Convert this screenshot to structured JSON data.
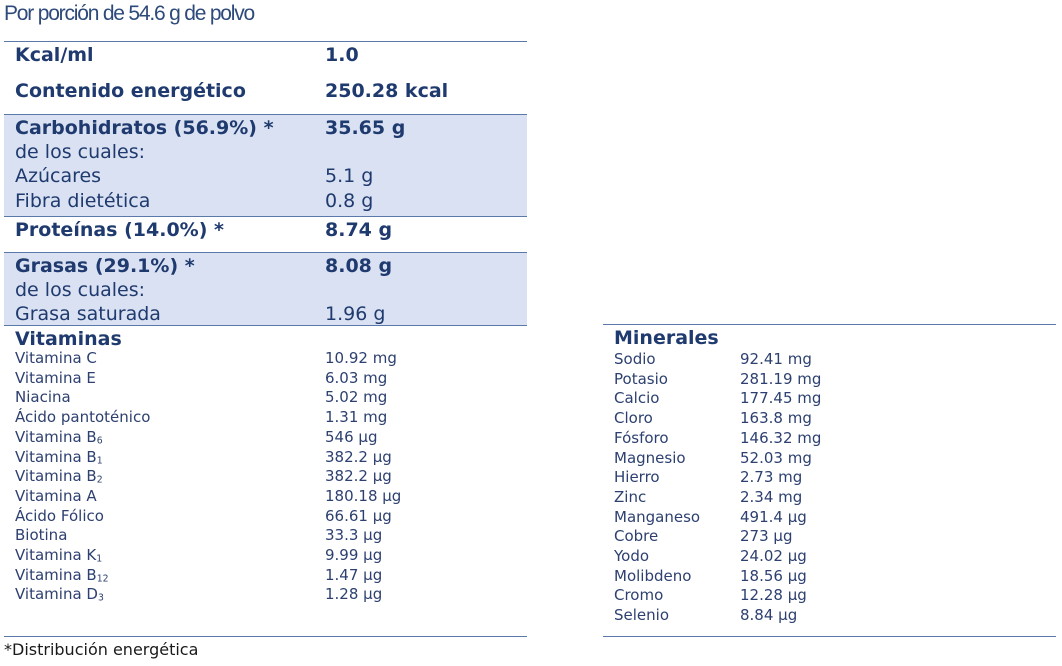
{
  "title": "Por porción de 54.6 g de polvo",
  "kcal_ml": {
    "label": "Kcal/ml",
    "value": "1.0"
  },
  "energy": {
    "label": "Contenido energético",
    "value": "250.28 kcal"
  },
  "carbs": {
    "label": "Carbohidratos (56.9%) *",
    "value": "35.65 g",
    "of_which": "de los cuales:",
    "sugars": {
      "label": "Azúcares",
      "value": "5.1 g"
    },
    "fiber": {
      "label": "Fibra dietética",
      "value": "0.8 g"
    }
  },
  "protein": {
    "label": "Proteínas (14.0%) *",
    "value": "8.74 g"
  },
  "fat": {
    "label": "Grasas (29.1%) *",
    "value": "8.08 g",
    "of_which": "de los cuales:",
    "saturated": {
      "label": "Grasa saturada",
      "value": "1.96 g"
    }
  },
  "vitamins": {
    "heading": "Vitaminas",
    "items": [
      {
        "name": "Vitamina C",
        "value": "10.92 mg"
      },
      {
        "name": "Vitamina E",
        "value": "6.03 mg"
      },
      {
        "name": "Niacina",
        "value": "5.02 mg"
      },
      {
        "name": "Ácido pantoténico",
        "value": "1.31 mg"
      },
      {
        "name": "Vitamina B",
        "sub": "6",
        "value": "546 µg"
      },
      {
        "name": "Vitamina B",
        "sub": "1",
        "value": "382.2 µg"
      },
      {
        "name": "Vitamina B",
        "sub": "2",
        "value": "382.2 µg"
      },
      {
        "name": "Vitamina A",
        "value": "180.18 µg"
      },
      {
        "name": "Ácido Fólico",
        "value": "66.61 µg"
      },
      {
        "name": "Biotina",
        "value": "33.3 µg"
      },
      {
        "name": "Vitamina K",
        "sub": "1",
        "value": "9.99 µg"
      },
      {
        "name": "Vitamina B",
        "sub": "12",
        "value": "1.47 µg"
      },
      {
        "name": "Vitamina D",
        "sub": "3",
        "value": "1.28 µg"
      }
    ]
  },
  "minerals": {
    "heading": "Minerales",
    "items": [
      {
        "name": "Sodio",
        "value": "92.41 mg"
      },
      {
        "name": "Potasio",
        "value": "281.19 mg"
      },
      {
        "name": "Calcio",
        "value": "177.45 mg"
      },
      {
        "name": "Cloro",
        "value": "163.8 mg"
      },
      {
        "name": "Fósforo",
        "value": "146.32 mg"
      },
      {
        "name": "Magnesio",
        "value": "52.03 mg"
      },
      {
        "name": "Hierro",
        "value": "2.73 mg"
      },
      {
        "name": "Zinc",
        "value": "2.34 mg"
      },
      {
        "name": "Manganeso",
        "value": "491.4 µg"
      },
      {
        "name": "Cobre",
        "value": "273 µg"
      },
      {
        "name": "Yodo",
        "value": "24.02 µg"
      },
      {
        "name": "Molibdeno",
        "value": "18.56 µg"
      },
      {
        "name": "Cromo",
        "value": "12.28 µg"
      },
      {
        "name": "Selenio",
        "value": "8.84 µg"
      }
    ]
  },
  "footnote": "*Distribución energética"
}
